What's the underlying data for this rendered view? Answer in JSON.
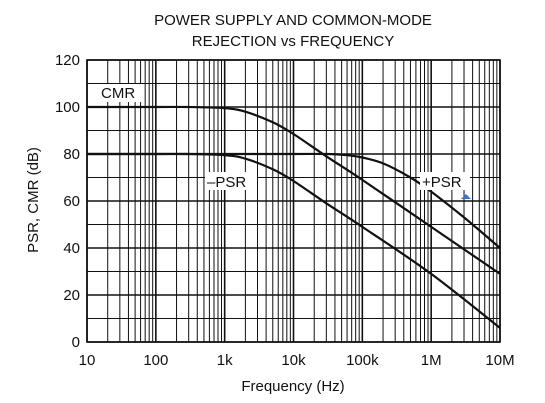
{
  "chart_data": {
    "type": "line",
    "title_line1": "POWER SUPPLY AND COMMON-MODE",
    "title_line2": "REJECTION vs FREQUENCY",
    "xlabel": "Frequency (Hz)",
    "ylabel": "PSR, CMR (dB)",
    "x_scale": "log",
    "xlim": [
      10,
      10000000
    ],
    "ylim": [
      0,
      120
    ],
    "grid": true,
    "x_ticks": [
      {
        "value": 10,
        "label": "10"
      },
      {
        "value": 100,
        "label": "100"
      },
      {
        "value": 1000,
        "label": "1k"
      },
      {
        "value": 10000,
        "label": "10k"
      },
      {
        "value": 100000,
        "label": "100k"
      },
      {
        "value": 1000000,
        "label": "1M"
      },
      {
        "value": 10000000,
        "label": "10M"
      }
    ],
    "y_ticks": [
      0,
      20,
      40,
      60,
      80,
      100,
      120
    ],
    "series": [
      {
        "name": "CMR",
        "x": [
          10,
          100,
          300,
          1000,
          2000,
          5000,
          10000,
          30000,
          100000,
          1000000,
          10000000
        ],
        "y": [
          100,
          100,
          100,
          99.5,
          98,
          93.5,
          88.5,
          79,
          69,
          49,
          29
        ]
      },
      {
        "name": "–PSR",
        "x": [
          10,
          100,
          300,
          1000,
          2000,
          5000,
          10000,
          30000,
          100000,
          1000000,
          10000000
        ],
        "y": [
          80,
          80,
          80,
          79.5,
          78,
          73.5,
          68.5,
          59,
          49,
          29,
          6
        ]
      },
      {
        "name": "+PSR",
        "x": [
          10,
          100,
          1000,
          10000,
          30000,
          60000,
          100000,
          200000,
          500000,
          1000000,
          3000000,
          10000000
        ],
        "y": [
          80,
          80,
          80,
          80,
          80,
          79.5,
          78.5,
          76,
          70,
          64,
          53,
          40
        ]
      }
    ],
    "annotations": [
      {
        "text": "CMR"
      },
      {
        "text": "–PSR"
      },
      {
        "text": "+PSR"
      }
    ]
  },
  "colors": {
    "curve": "#111111",
    "grid": "#111111",
    "marker": "#3b6fd6"
  }
}
